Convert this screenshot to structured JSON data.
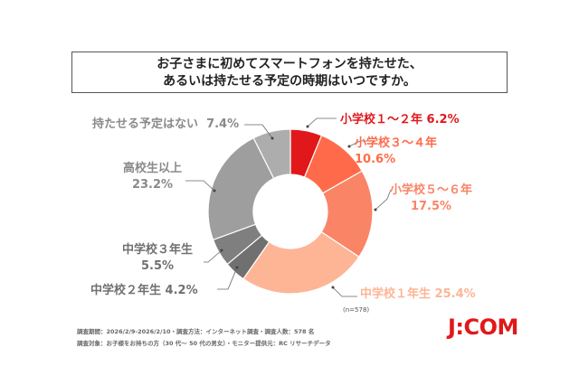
{
  "chart_data": {
    "type": "pie",
    "donut": true,
    "title": "お子さまに初めてスマートフォンを持たせた、\nあるいは持たせる予定の時期はいつですか。",
    "title_lines": [
      "お子さまに初めてスマートフォンを持たせた、",
      "あるいは持たせる予定の時期はいつですか。"
    ],
    "categories": [
      "小学校１～２年",
      "小学校３～４年",
      "小学校５～６年",
      "中学校１年生",
      "中学校２年生",
      "中学校３年生",
      "高校生以上",
      "持たせる予定はない"
    ],
    "values": [
      6.2,
      10.6,
      17.5,
      25.4,
      4.2,
      5.5,
      23.2,
      7.4
    ],
    "value_labels": [
      "6.2%",
      "10.6%",
      "17.5%",
      "25.4%",
      "4.2%",
      "5.5%",
      "23.2%",
      "7.4%"
    ],
    "colors": [
      "#E0181B",
      "#FF6B4A",
      "#FA8466",
      "#FDB596",
      "#707070",
      "#7F7F7F",
      "#9E9E9E",
      "#ADADAD"
    ],
    "label_colors": [
      "#E0181B",
      "#FF6B4A",
      "#FA8466",
      "#FDB596",
      "#707070",
      "#707070",
      "#8A8A8A",
      "#8A8A8A"
    ],
    "sample": "(n=578)"
  },
  "footer": {
    "line1": "調査期間：2026/2/9-2026/2/10・調査方法：インターネット調査・調査人数：578 名",
    "line2": "調査対象：お子様をお持ちの方（30 代～ 50 代の男女）・モニター提供元：RC リサーチデータ"
  },
  "logo": "J:COM"
}
